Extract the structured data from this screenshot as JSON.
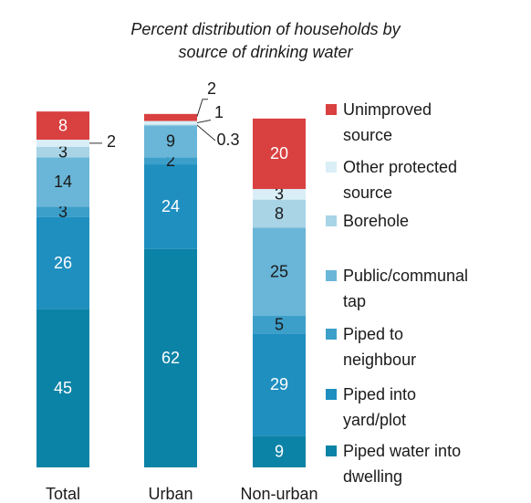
{
  "chart_data": {
    "type": "bar",
    "stacked": true,
    "title": "Percent distribution of households by source of drinking water",
    "categories": [
      "Total",
      "Urban",
      "Non-urban"
    ],
    "series": [
      {
        "name": "Piped water into dwelling",
        "color": "#0b83a6",
        "values": [
          45,
          62,
          9
        ]
      },
      {
        "name": "Piped into yard/plot",
        "color": "#1f8fc0",
        "values": [
          26,
          24,
          29
        ]
      },
      {
        "name": "Piped to neighbour",
        "color": "#3c9fc9",
        "values": [
          3,
          2,
          5
        ]
      },
      {
        "name": "Public/communal tap",
        "color": "#69b6d8",
        "values": [
          14,
          9,
          25
        ]
      },
      {
        "name": "Borehole",
        "color": "#a8d4e6",
        "values": [
          3,
          0.3,
          8
        ]
      },
      {
        "name": "Other protected source",
        "color": "#d9eef7",
        "values": [
          2,
          1,
          3
        ]
      },
      {
        "name": "Unimproved source",
        "color": "#d94040",
        "values": [
          8,
          2,
          20
        ]
      }
    ]
  }
}
